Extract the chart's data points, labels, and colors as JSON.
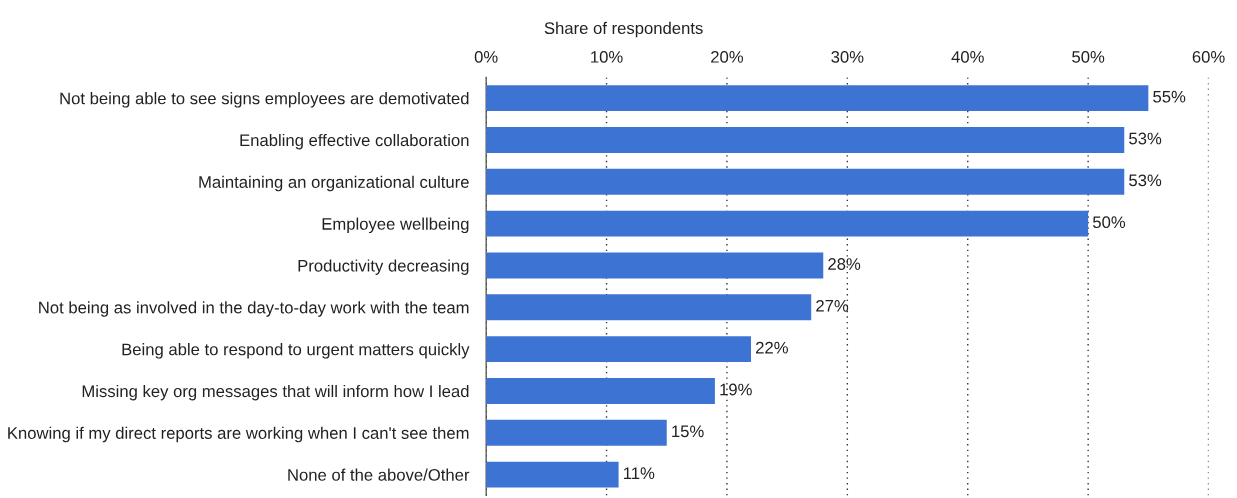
{
  "chart_data": {
    "type": "bar",
    "orientation": "horizontal",
    "xlabel": "Share of respondents",
    "categories": [
      "Not being able to see signs employees are demotivated",
      "Enabling effective collaboration",
      "Maintaining an organizational culture",
      "Employee wellbeing",
      "Productivity decreasing",
      "Not being as involved in the day-to-day work with the team",
      "Being able to respond to urgent matters quickly",
      "Missing key org messages that will inform how I lead",
      "Knowing if my direct reports are working when I can't see them",
      "None of the above/Other"
    ],
    "values": [
      55,
      53,
      53,
      50,
      28,
      27,
      22,
      19,
      15,
      11
    ],
    "value_labels": [
      "55%",
      "53%",
      "53%",
      "50%",
      "28%",
      "27%",
      "22%",
      "19%",
      "15%",
      "11%"
    ],
    "color": "#3d74d4",
    "xlim": [
      0,
      60
    ],
    "xticks": [
      {
        "value": 0,
        "label": "0%"
      },
      {
        "value": 10,
        "label": "10%"
      },
      {
        "value": 20,
        "label": "20%"
      },
      {
        "value": 30,
        "label": "30%"
      },
      {
        "value": 40,
        "label": "40%"
      },
      {
        "value": 50,
        "label": "50%"
      },
      {
        "value": 60,
        "label": "60%"
      }
    ],
    "grid": "x"
  }
}
